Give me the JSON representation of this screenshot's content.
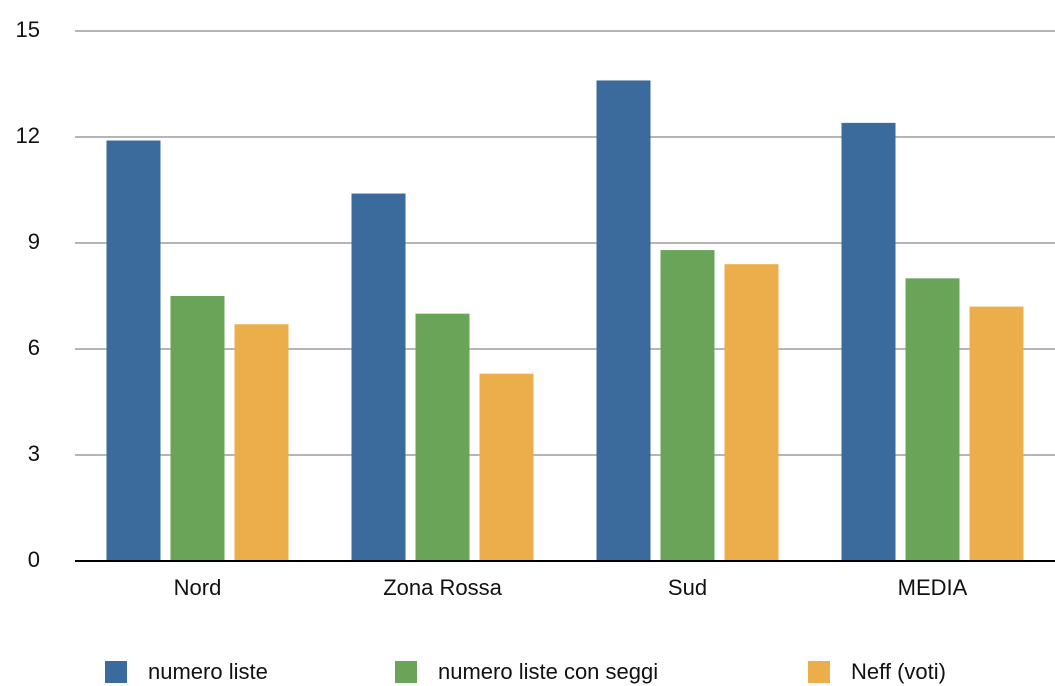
{
  "chart_data": {
    "type": "bar",
    "categories": [
      "Nord",
      "Zona Rossa",
      "Sud",
      "MEDIA"
    ],
    "series": [
      {
        "name": "numero liste",
        "color": "#3b6a9c",
        "values": [
          11.9,
          10.4,
          13.6,
          12.4
        ]
      },
      {
        "name": "numero liste con seggi",
        "color": "#6aa459",
        "values": [
          7.5,
          7.0,
          8.8,
          8.0
        ]
      },
      {
        "name": "Neff (voti)",
        "color": "#ecae4a",
        "values": [
          6.7,
          5.3,
          8.4,
          7.2
        ]
      }
    ],
    "ylim": [
      0,
      15
    ],
    "yticks": [
      0,
      3,
      6,
      9,
      12,
      15
    ],
    "grid": true,
    "legend": "bottom"
  }
}
